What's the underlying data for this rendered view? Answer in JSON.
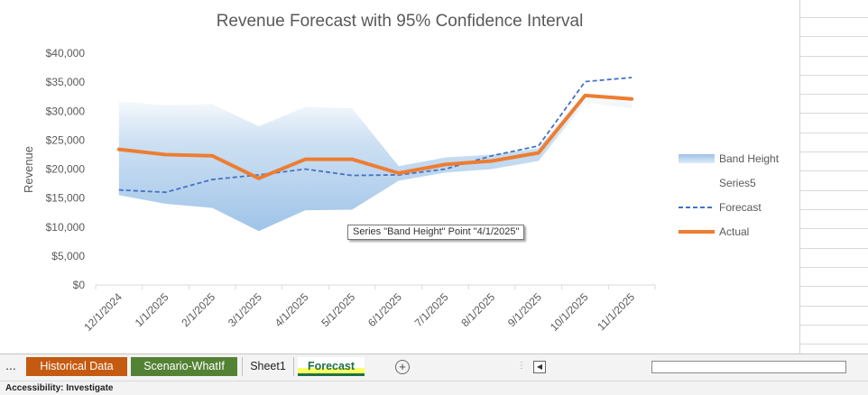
{
  "chart_data": {
    "type": "line",
    "title": "Revenue Forecast with 95% Confidence Interval",
    "xlabel": "",
    "ylabel": "Revenue",
    "categories": [
      "12/1/2024",
      "1/1/2025",
      "2/1/2025",
      "3/1/2025",
      "4/1/2025",
      "5/1/2025",
      "6/1/2025",
      "7/1/2025",
      "8/1/2025",
      "9/1/2025",
      "10/1/2025",
      "11/1/2025"
    ],
    "yticks": [
      "$0",
      "$5,000",
      "$10,000",
      "$15,000",
      "$20,000",
      "$25,000",
      "$30,000",
      "$35,000",
      "$40,000"
    ],
    "ylim": [
      0,
      40000
    ],
    "grid": false,
    "legend_position": "right",
    "series": [
      {
        "name": "Band Height",
        "kind": "band",
        "lower": [
          15500,
          14000,
          13300,
          9300,
          12900,
          13000,
          18000,
          19400,
          20000,
          21400,
          31500,
          30500
        ],
        "upper": [
          31700,
          31000,
          31200,
          27400,
          30700,
          30500,
          20500,
          22000,
          22500,
          23600,
          33500,
          32500
        ]
      },
      {
        "name": "Series5",
        "kind": "invisible"
      },
      {
        "name": "Forecast",
        "kind": "dashed",
        "values": [
          16400,
          16000,
          18200,
          19000,
          20000,
          18900,
          19000,
          20000,
          22300,
          24000,
          35100,
          35800
        ]
      },
      {
        "name": "Actual",
        "kind": "solid",
        "values": [
          23400,
          22500,
          22300,
          18400,
          21700,
          21700,
          19300,
          20800,
          21400,
          22800,
          32700,
          32100
        ]
      }
    ]
  },
  "tooltip": "Series \"Band Height\" Point \"4/1/2025\"",
  "colors": {
    "band": "#bdd7ee",
    "forecast": "#4472c4",
    "actual": "#ed7d31",
    "axis_text": "#595959"
  },
  "sheet_tabs": {
    "more": "...",
    "tabs": [
      {
        "label": "Historical Data",
        "color": "#c55a11",
        "active": false
      },
      {
        "label": "Scenario-WhatIf",
        "color": "#548235",
        "active": false
      },
      {
        "label": "Sheet1",
        "color": "",
        "active": false
      },
      {
        "label": "Forecast",
        "color": "#ffff66",
        "active": true
      }
    ],
    "add_icon": "+"
  },
  "status": {
    "accessibility": "Accessibility: Investigate"
  }
}
